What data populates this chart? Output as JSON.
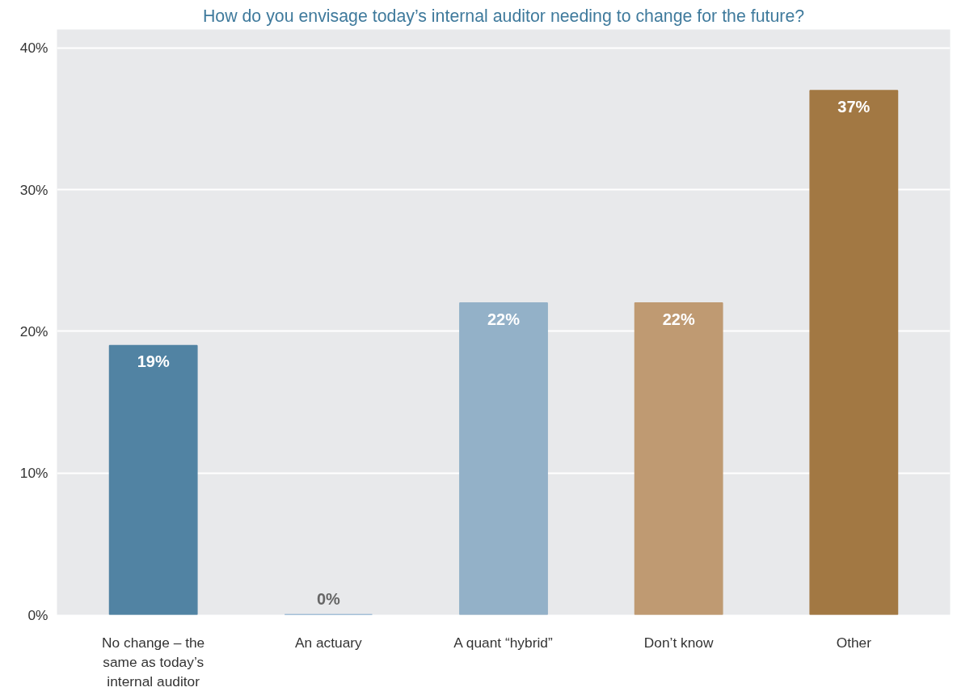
{
  "chart_data": {
    "type": "bar",
    "title": "How do you envisage today’s internal auditor needing to change for the future?",
    "categories": [
      "No change – the same as today’s internal auditor",
      "An actuary",
      "A quant “hybrid”",
      "Don’t know",
      "Other"
    ],
    "values": [
      19,
      0,
      22,
      22,
      37
    ],
    "colors": [
      "#5183a3",
      "#5b8fc0",
      "#93b1c8",
      "#bf9a72",
      "#a27843"
    ],
    "value_labels": [
      "19%",
      "0%",
      "22%",
      "22%",
      "37%"
    ],
    "ylim": [
      0,
      41.3
    ],
    "yticks": [
      {
        "value": 0,
        "label": "0%"
      },
      {
        "value": 10,
        "label": "10%"
      },
      {
        "value": 20,
        "label": "20%"
      },
      {
        "value": 30,
        "label": "30%"
      },
      {
        "value": 40,
        "label": "40%"
      }
    ],
    "grid": "y"
  }
}
